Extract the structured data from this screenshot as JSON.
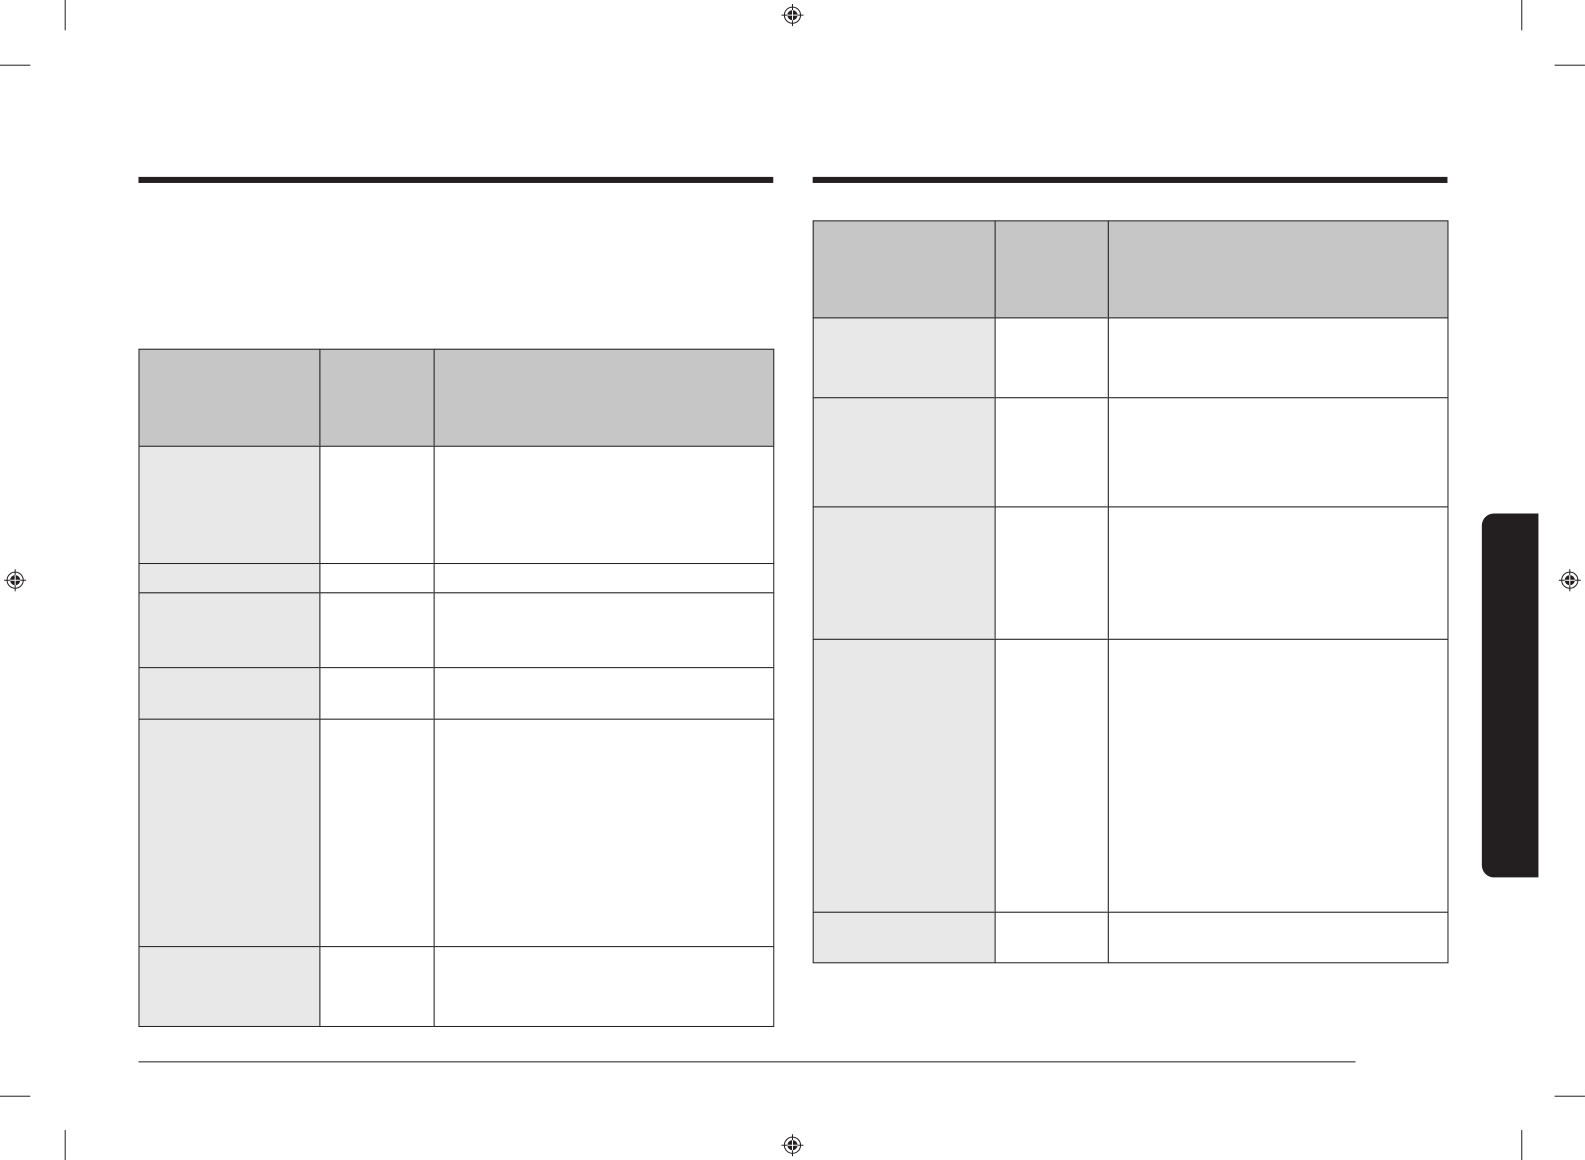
{
  "colors": {
    "rule": "#231f20",
    "header_fill": "#c6c6c6",
    "first_column_fill": "#e8e8e8",
    "body_fill": "#ffffff",
    "side_tab": "#231f20"
  },
  "left_table": {
    "columns": 3,
    "body_rows": 6,
    "cells": []
  },
  "right_table": {
    "columns": 3,
    "body_rows": 5,
    "cells": []
  }
}
